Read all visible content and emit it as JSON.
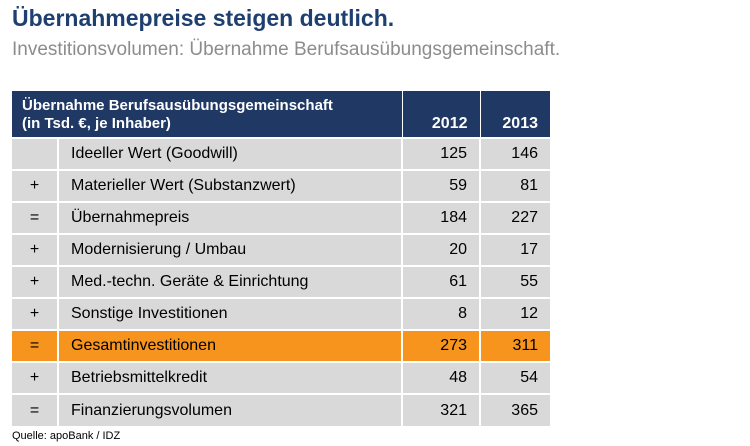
{
  "header": {
    "title": "Übernahmepreise steigen deutlich.",
    "subtitle": "Investitionsvolumen: Übernahme Berufsausübungsgemeinschaft."
  },
  "chart_data": {
    "type": "table",
    "title": "Übernahmepreise steigen deutlich.",
    "subtitle": "Investitionsvolumen: Übernahme Berufsausübungsgemeinschaft.",
    "header_line1": "Übernahme Berufsausübungsgemeinschaft",
    "header_line2": "(in Tsd. €, je Inhaber)",
    "columns": [
      "2012",
      "2013"
    ],
    "highlight_color": "#f7941d",
    "header_color": "#1f3864",
    "rows": [
      {
        "op": "",
        "label": "Ideeller Wert (Goodwill)",
        "values": [
          "125",
          "146"
        ]
      },
      {
        "op": "+",
        "label": "Materieller Wert (Substanzwert)",
        "values": [
          "59",
          "81"
        ]
      },
      {
        "op": "=",
        "label": "Übernahmepreis",
        "values": [
          "184",
          "227"
        ]
      },
      {
        "op": "+",
        "label": "Modernisierung / Umbau",
        "values": [
          "20",
          "17"
        ]
      },
      {
        "op": "+",
        "label": "Med.-techn. Geräte & Einrichtung",
        "values": [
          "61",
          "55"
        ]
      },
      {
        "op": "+",
        "label": "Sonstige Investitionen",
        "values": [
          "8",
          "12"
        ]
      },
      {
        "op": "=",
        "label": "Gesamtinvestitionen",
        "values": [
          "273",
          "311"
        ],
        "highlight": true
      },
      {
        "op": "+",
        "label": "Betriebsmittelkredit",
        "values": [
          "48",
          "54"
        ]
      },
      {
        "op": "=",
        "label": "Finanzierungsvolumen",
        "values": [
          "321",
          "365"
        ]
      }
    ]
  },
  "footer": {
    "source": "Quelle: apoBank / IDZ"
  }
}
